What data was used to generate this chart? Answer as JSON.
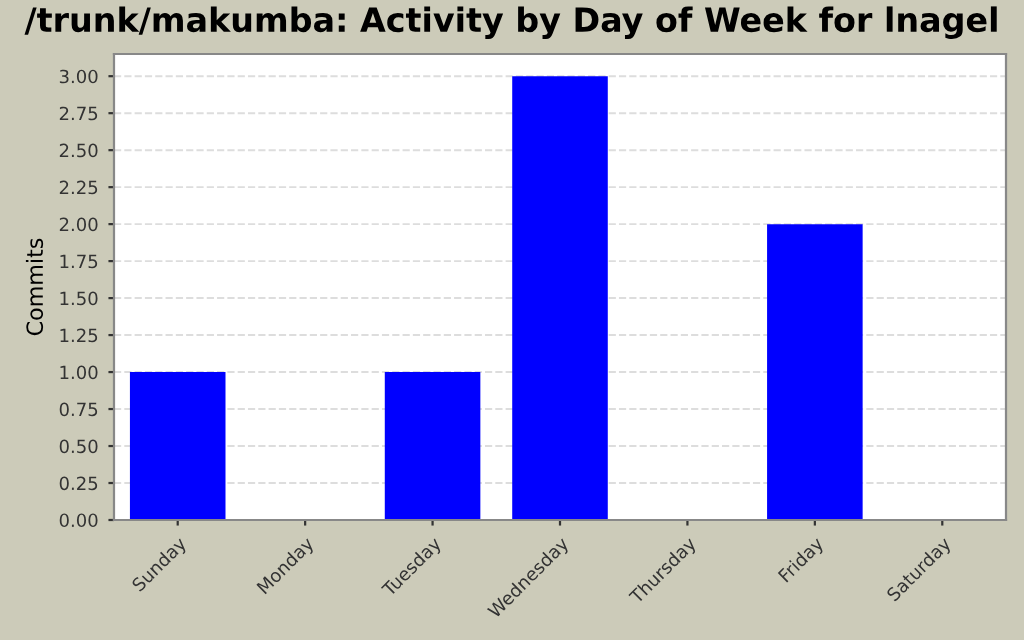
{
  "chart_data": {
    "type": "bar",
    "title": "/trunk/makumba: Activity by Day of Week for lnagel",
    "ylabel": "Commits",
    "categories": [
      "Sunday",
      "Monday",
      "Tuesday",
      "Wednesday",
      "Thursday",
      "Friday",
      "Saturday"
    ],
    "values": [
      1,
      0,
      1,
      3,
      0,
      2,
      0
    ],
    "color": "#0000ff",
    "ylim": [
      0,
      3.15
    ],
    "yticks": [
      {
        "value": 0,
        "label": "0.00"
      },
      {
        "value": 0.25,
        "label": "0.25"
      },
      {
        "value": 0.5,
        "label": "0.50"
      },
      {
        "value": 0.75,
        "label": "0.75"
      },
      {
        "value": 1,
        "label": "1.00"
      },
      {
        "value": 1.25,
        "label": "1.25"
      },
      {
        "value": 1.5,
        "label": "1.50"
      },
      {
        "value": 1.75,
        "label": "1.75"
      },
      {
        "value": 2,
        "label": "2.00"
      },
      {
        "value": 2.25,
        "label": "2.25"
      },
      {
        "value": 2.5,
        "label": "2.50"
      },
      {
        "value": 2.75,
        "label": "2.75"
      },
      {
        "value": 3,
        "label": "3.00"
      }
    ],
    "grid": "y"
  }
}
